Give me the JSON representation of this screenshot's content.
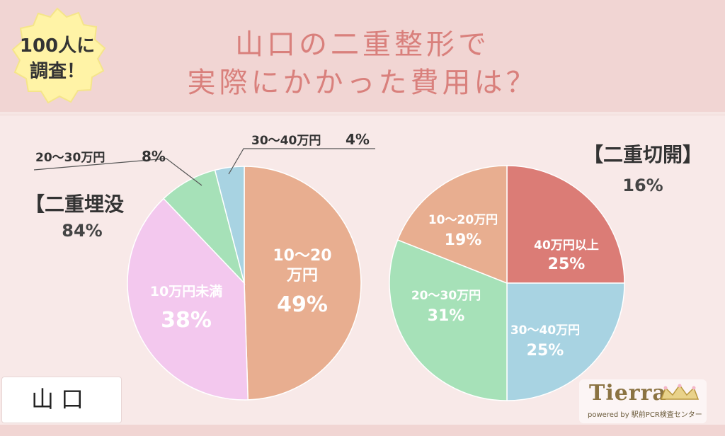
{
  "title_line1": "山口の二重整形で",
  "title_line2": "実際にかかった費用は？",
  "badge": {
    "line1": "100人に",
    "line2": "調査！"
  },
  "region": "山口",
  "logo": {
    "name": "Tierra",
    "sub": "powered by 駅前PCR検査センター"
  },
  "colors": {
    "header_bg": "#f1d5d3",
    "panel_bg": "#f8e9e8",
    "title": "#d9807c",
    "badge_fill": "#fff3a6",
    "peach": "#e8ae90",
    "pink": "#f3c8ee",
    "green": "#a6e1b8",
    "blue": "#a8d3e2",
    "red": "#db7c76"
  },
  "chart_data": [
    {
      "type": "pie",
      "title": "【二重埋没",
      "subtitle": "84%",
      "categories": [
        "10〜20万円",
        "10万円未満",
        "20〜30万円",
        "30〜40万円"
      ],
      "values": [
        49,
        38,
        8,
        4
      ],
      "labels": [
        {
          "text": "10〜20\n万円",
          "pct": "49%"
        },
        {
          "text": "10万円未満",
          "pct": "38%"
        },
        {
          "text": "20〜30万円",
          "pct": "8%"
        },
        {
          "text": "30〜40万円",
          "pct": "4%"
        }
      ],
      "colors": [
        "#e8ae90",
        "#f3c8ee",
        "#a6e1b8",
        "#a8d3e2"
      ]
    },
    {
      "type": "pie",
      "title": "【二重切開】",
      "subtitle": "16%",
      "categories": [
        "40万円以上",
        "30〜40万円",
        "20〜30万円",
        "10〜20万円"
      ],
      "values": [
        25,
        25,
        31,
        19
      ],
      "labels": [
        {
          "text": "40万円以上",
          "pct": "25%"
        },
        {
          "text": "30〜40万円",
          "pct": "25%"
        },
        {
          "text": "20〜30万円",
          "pct": "31%"
        },
        {
          "text": "10〜20万円",
          "pct": "19%"
        }
      ],
      "colors": [
        "#db7c76",
        "#a8d3e2",
        "#a6e1b8",
        "#e8ae90"
      ]
    }
  ]
}
